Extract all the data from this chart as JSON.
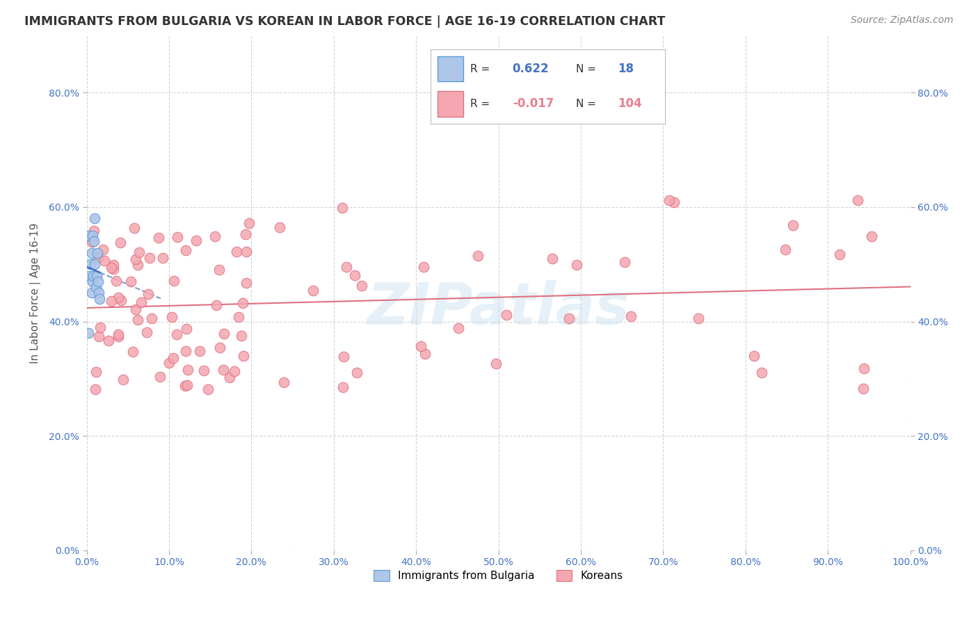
{
  "title": "IMMIGRANTS FROM BULGARIA VS KOREAN IN LABOR FORCE | AGE 16-19 CORRELATION CHART",
  "source": "Source: ZipAtlas.com",
  "ylabel": "In Labor Force | Age 16-19",
  "xlim": [
    0.0,
    1.0
  ],
  "ylim": [
    0.0,
    0.9
  ],
  "xticks": [
    0.0,
    0.1,
    0.2,
    0.3,
    0.4,
    0.5,
    0.6,
    0.7,
    0.8,
    0.9,
    1.0
  ],
  "yticks": [
    0.0,
    0.2,
    0.4,
    0.6,
    0.8
  ],
  "xtick_labels": [
    "0.0%",
    "",
    "",
    "",
    "",
    "",
    "",
    "",
    "",
    "",
    "100.0%"
  ],
  "ytick_labels": [
    "",
    "20.0%",
    "40.0%",
    "60.0%",
    "80.0%"
  ],
  "bg_color": "#ffffff",
  "grid_color": "#cccccc",
  "bulgaria_color": "#aec6e8",
  "korean_color": "#f4a7b0",
  "bulgaria_edge": "#5b9bd5",
  "korean_edge": "#e07080",
  "trend_bulgaria_color": "#4472c4",
  "trend_korean_color": "#e07080",
  "R_bulgaria": 0.622,
  "N_bulgaria": 18,
  "R_korean": -0.017,
  "N_korean": 104,
  "watermark": "ZIPatlas"
}
